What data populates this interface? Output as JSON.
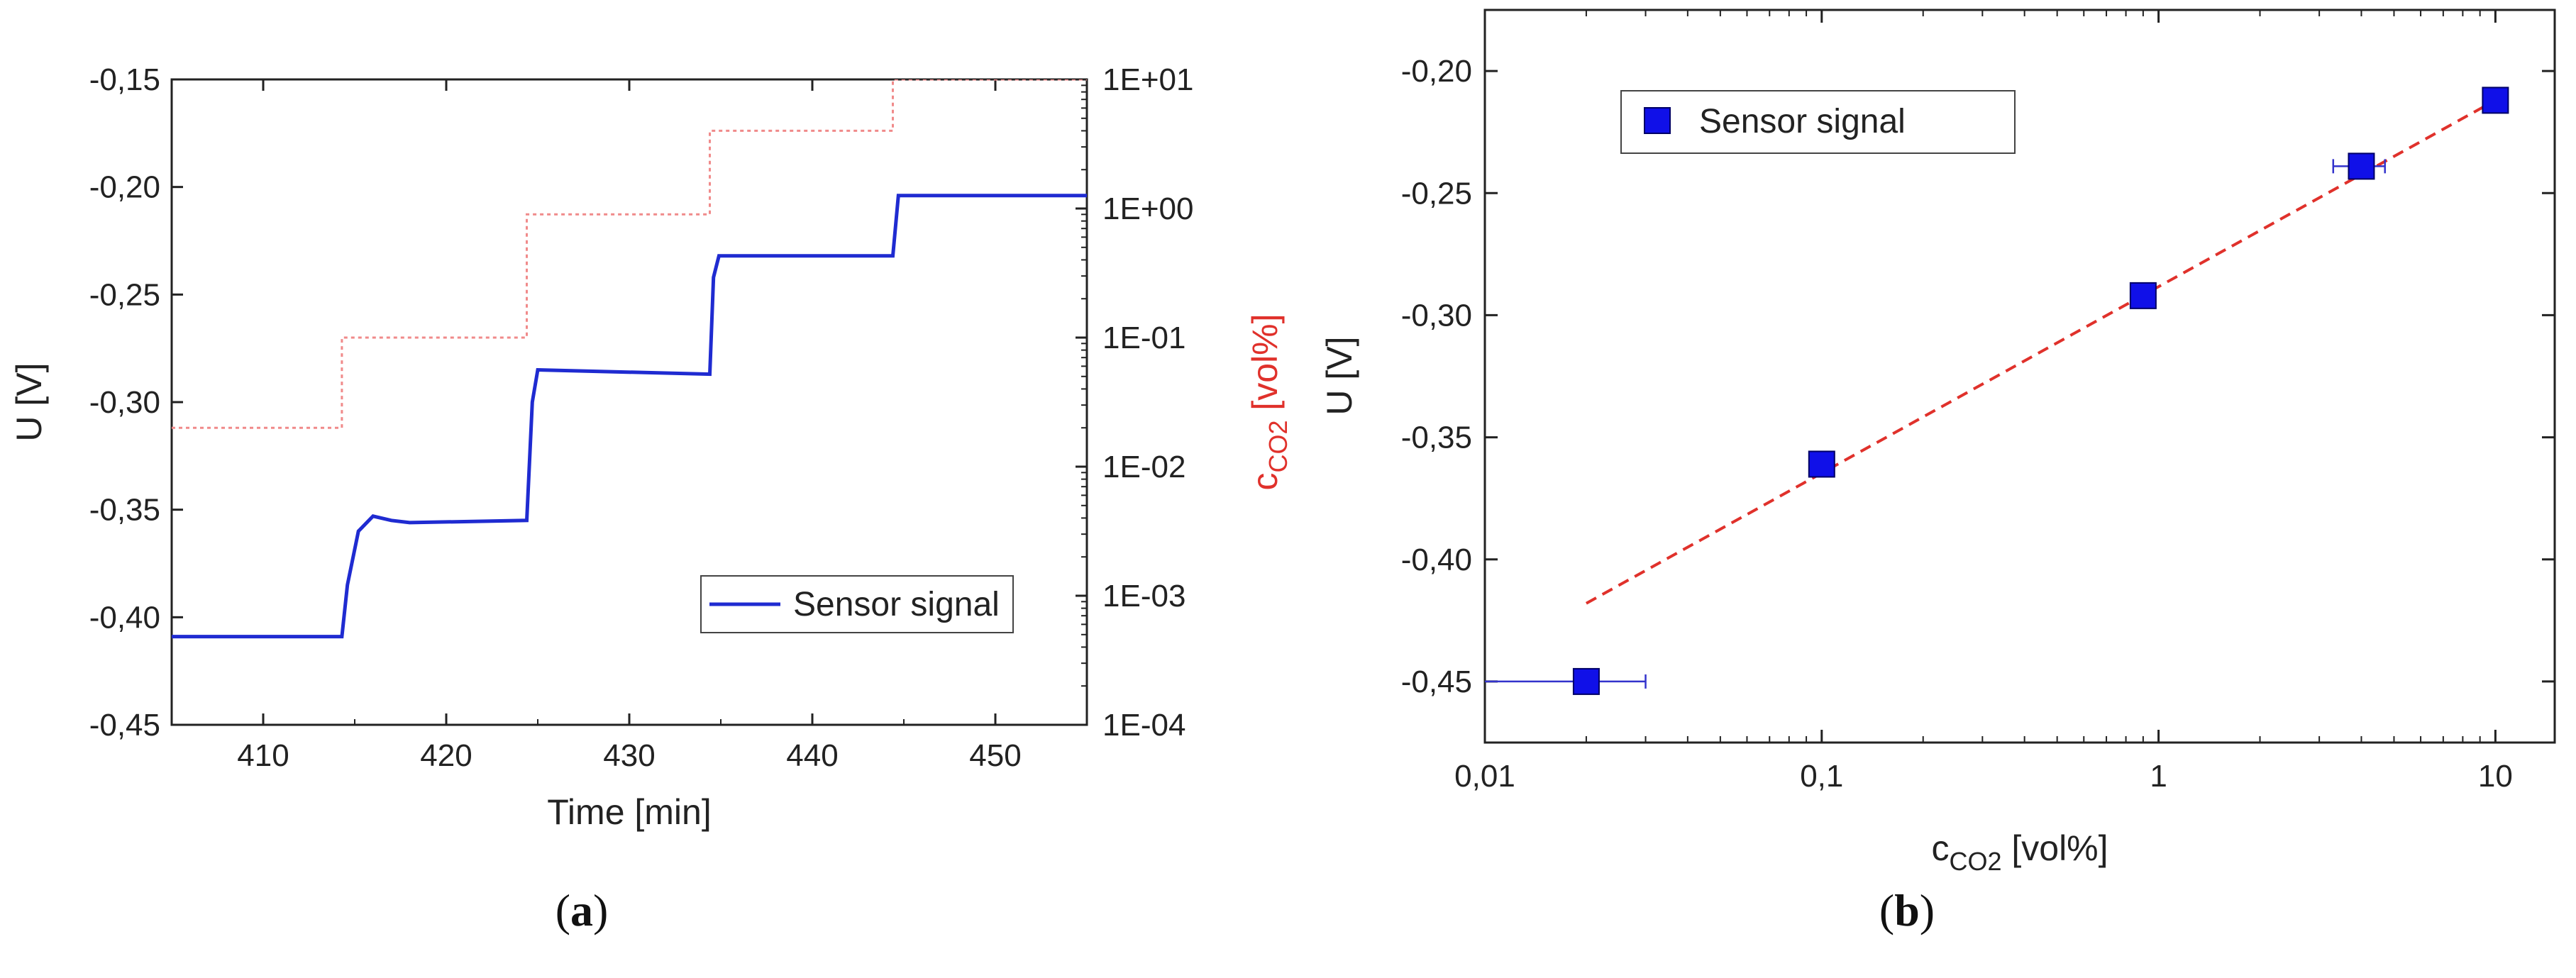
{
  "chart_data": [
    {
      "panel": "a",
      "type": "line",
      "caption": "a",
      "x": [
        405,
        414.3,
        414.6,
        415.2,
        416,
        417,
        418,
        424.4,
        424.7,
        425,
        434.4,
        434.6,
        434.9,
        444.4,
        444.7,
        455
      ],
      "xlabel": "Time [min]",
      "ylabel": "U [V]",
      "y2label": "c",
      "y2label_sub": "CO2",
      "y2label_unit": " [vol%]",
      "xlim": [
        405,
        455
      ],
      "ylim": [
        -0.45,
        -0.15
      ],
      "y2lim": [
        0.0001,
        10
      ],
      "y2_scale": "log",
      "xticks": [
        "410",
        "420",
        "430",
        "440",
        "450"
      ],
      "yticks": [
        "-0,45",
        "-0,40",
        "-0,35",
        "-0,30",
        "-0,25",
        "-0,20",
        "-0,15"
      ],
      "y2ticks": [
        "1E-04",
        "1E-03",
        "1E-02",
        "1E-01",
        "1E+00",
        "1E+01"
      ],
      "legend": "bottom-right",
      "grid": false,
      "series": [
        {
          "name": "Sensor signal",
          "axis": "left",
          "color": "#1f2bd1",
          "style": "solid",
          "points": [
            [
              405,
              -0.409
            ],
            [
              414.3,
              -0.409
            ],
            [
              414.6,
              -0.385
            ],
            [
              415.2,
              -0.36
            ],
            [
              416,
              -0.353
            ],
            [
              417,
              -0.355
            ],
            [
              418,
              -0.356
            ],
            [
              424.4,
              -0.355
            ],
            [
              424.7,
              -0.3
            ],
            [
              425,
              -0.285
            ],
            [
              434.4,
              -0.287
            ],
            [
              434.6,
              -0.242
            ],
            [
              434.9,
              -0.232
            ],
            [
              444.4,
              -0.232
            ],
            [
              444.7,
              -0.204
            ],
            [
              455,
              -0.204
            ]
          ]
        },
        {
          "name": "",
          "axis": "right",
          "color": "#f08a8a",
          "style": "dotted",
          "points": [
            [
              405,
              0.02
            ],
            [
              414.3,
              0.02
            ],
            [
              414.3,
              0.1
            ],
            [
              424.4,
              0.1
            ],
            [
              424.4,
              0.9
            ],
            [
              434.4,
              0.9
            ],
            [
              434.4,
              4
            ],
            [
              444.4,
              4
            ],
            [
              444.4,
              10
            ],
            [
              455,
              10
            ]
          ]
        }
      ]
    },
    {
      "panel": "b",
      "type": "scatter",
      "caption": "b",
      "xlabel": "c",
      "xlabel_sub": "CO2",
      "xlabel_unit": " [vol%]",
      "ylabel": "U [V]",
      "x_scale": "log",
      "xlim": [
        0.01,
        15
      ],
      "ylim": [
        -0.475,
        -0.175
      ],
      "xticks": [
        {
          "v": 0.01,
          "label": "0,01"
        },
        {
          "v": 0.1,
          "label": "0,1"
        },
        {
          "v": 1,
          "label": "1"
        },
        {
          "v": 10,
          "label": "10"
        }
      ],
      "yticks": [
        "-0,45",
        "-0,40",
        "-0,35",
        "-0,30",
        "-0,25",
        "-0,20"
      ],
      "legend": "top-left",
      "grid": false,
      "series": [
        {
          "name": "Sensor signal",
          "color": "#1010e8",
          "marker": "square",
          "points": [
            {
              "x": 0.02,
              "y": -0.45,
              "xerr": [
                0.0,
                0.03
              ]
            },
            {
              "x": 0.1,
              "y": -0.361
            },
            {
              "x": 0.9,
              "y": -0.292
            },
            {
              "x": 4,
              "y": -0.239,
              "xerr": [
                3.3,
                4.7
              ]
            },
            {
              "x": 10,
              "y": -0.212
            }
          ]
        }
      ],
      "fit": {
        "color": "#e0312b",
        "style": "dashed",
        "x": [
          0.02,
          10
        ],
        "y": [
          -0.418,
          -0.212
        ]
      }
    }
  ]
}
